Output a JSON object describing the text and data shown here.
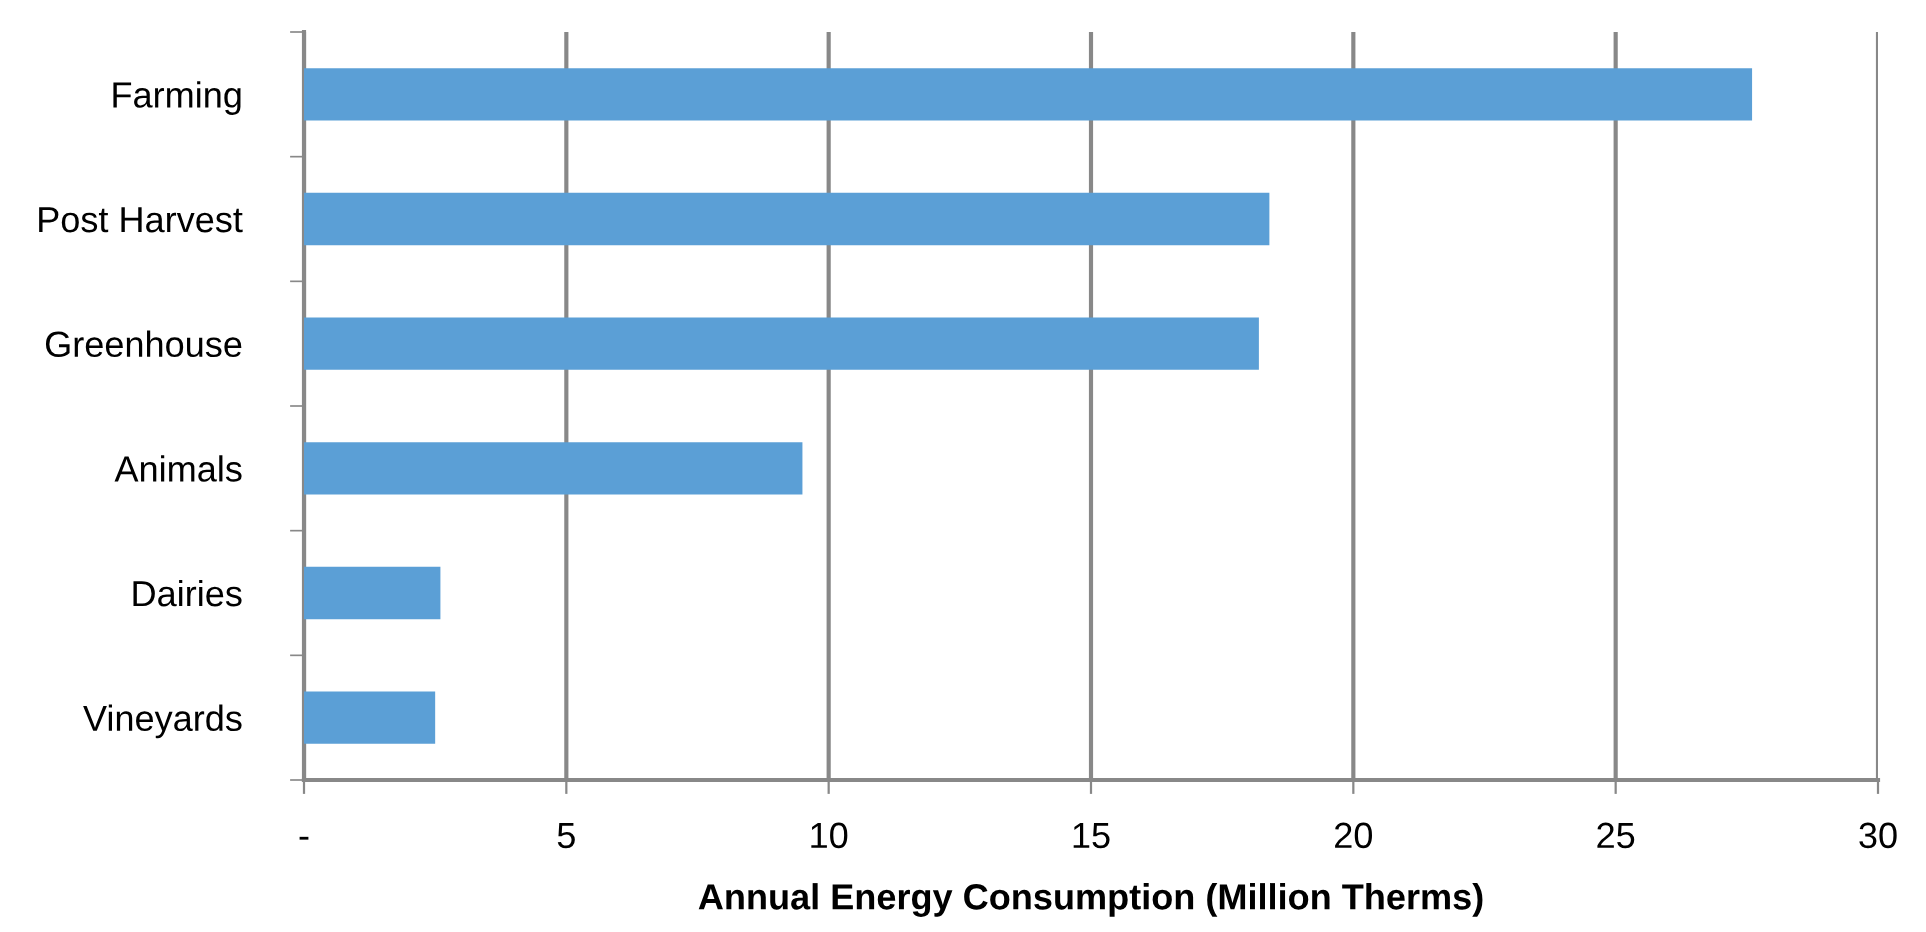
{
  "chart_data": {
    "type": "bar",
    "orientation": "horizontal",
    "categories": [
      "Farming",
      "Post Harvest",
      "Greenhouse",
      "Animals",
      "Dairies",
      "Vineyards"
    ],
    "values": [
      27.6,
      18.4,
      18.2,
      9.5,
      2.6,
      2.5
    ],
    "color": "#5b9fd6",
    "xlabel": "Annual Energy Consumption (Million Therms)",
    "xlim": [
      0,
      30
    ],
    "xticks": [
      {
        "value": 0,
        "label": "-"
      },
      5,
      10,
      15,
      20,
      25,
      30
    ],
    "grid": "x"
  }
}
